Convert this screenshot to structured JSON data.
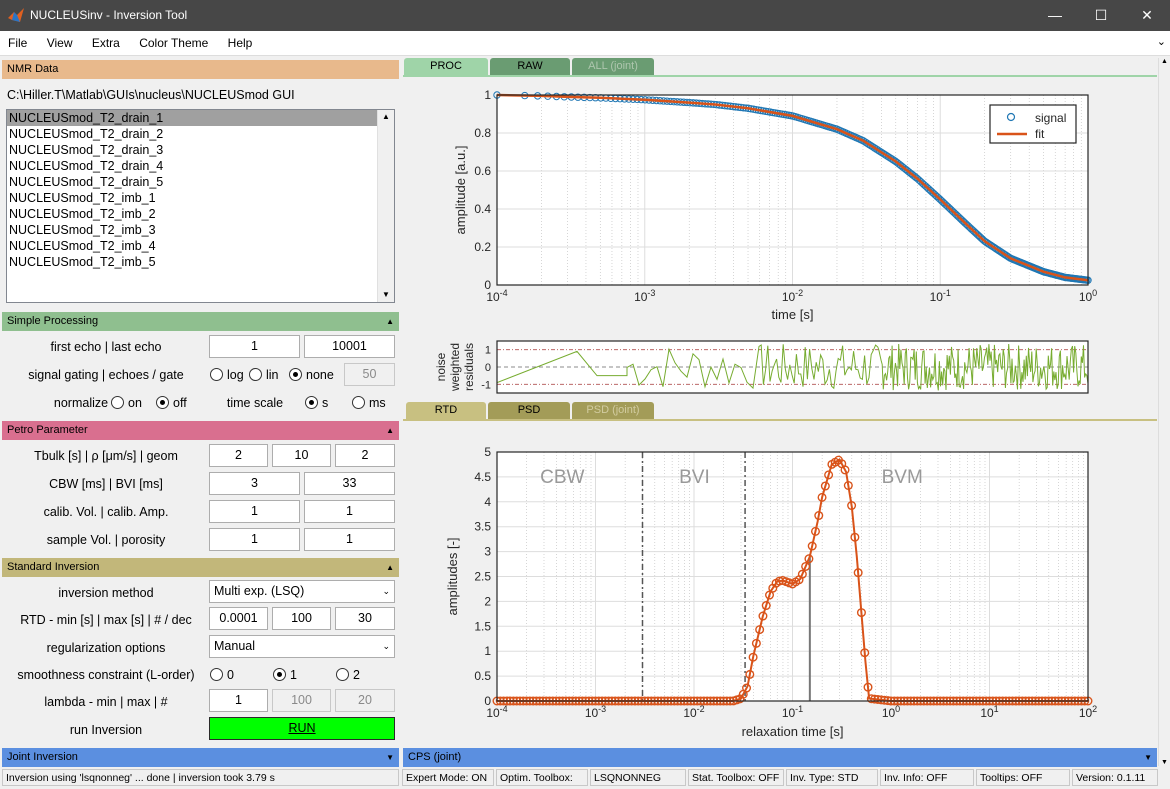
{
  "window": {
    "title": "NUCLEUSinv - Inversion Tool",
    "minimize": "—",
    "maximize": "☐",
    "close": "✕"
  },
  "menu": [
    "File",
    "View",
    "Extra",
    "Color Theme",
    "Help"
  ],
  "nmr": {
    "header": "NMR Data",
    "path": "C:\\Hiller.T\\Matlab\\GUIs\\nucleus\\NUCLEUSmod GUI",
    "files": [
      "NUCLEUSmod_T2_drain_1",
      "NUCLEUSmod_T2_drain_2",
      "NUCLEUSmod_T2_drain_3",
      "NUCLEUSmod_T2_drain_4",
      "NUCLEUSmod_T2_drain_5",
      "NUCLEUSmod_T2_imb_1",
      "NUCLEUSmod_T2_imb_2",
      "NUCLEUSmod_T2_imb_3",
      "NUCLEUSmod_T2_imb_4",
      "NUCLEUSmod_T2_imb_5"
    ]
  },
  "simple": {
    "header": "Simple Processing",
    "caret": "▲",
    "first_last_label": "first echo | last echo",
    "first_echo": "1",
    "last_echo": "10001",
    "gating_label": "signal gating | echoes / gate",
    "gate_log": "log",
    "gate_lin": "lin",
    "gate_none": "none",
    "gate_value": "50",
    "normalize_label": "normalize",
    "norm_on": "on",
    "norm_off": "off",
    "timescale_label": "time scale",
    "ts_s": "s",
    "ts_ms": "ms"
  },
  "petro": {
    "header": "Petro Parameter",
    "caret": "▲",
    "row1_label": "Tbulk [s]   |   ρ [μm/s]   |   geom",
    "tbulk": "2",
    "rho": "10",
    "geom": "2",
    "row2_label": "CBW [ms]     |    BVI [ms]",
    "cbw": "3",
    "bvi": "33",
    "row3_label": "calib. Vol.  |  calib. Amp.",
    "calib_vol": "1",
    "calib_amp": "1",
    "row4_label": "sample Vol.   |   porosity",
    "sample_vol": "1",
    "porosity": "1"
  },
  "inversion": {
    "header": "Standard Inversion",
    "caret": "▲",
    "method_label": "inversion method",
    "method": "Multi exp. (LSQ)",
    "rtd_label": "RTD - min [s] | max [s] | # / dec",
    "rtd_min": "0.0001",
    "rtd_max": "100",
    "rtd_n": "30",
    "reg_label": "regularization options",
    "reg": "Manual",
    "smooth_label": "smoothness constraint (L-order)",
    "s0": "0",
    "s1": "1",
    "s2": "2",
    "lambda_label": "lambda  -  min | max | #",
    "lam_min": "1",
    "lam_max": "100",
    "lam_n": "20",
    "run_label": "run Inversion",
    "run_button": "RUN"
  },
  "joint": {
    "header": "Joint Inversion",
    "caret": "▼"
  },
  "cps": {
    "header": "CPS (joint)",
    "caret": "▼"
  },
  "tabs_top": [
    "PROC",
    "RAW",
    "ALL (joint)"
  ],
  "tabs_bottom": [
    "RTD",
    "PSD",
    "PSD (joint)"
  ],
  "status": {
    "msg": "Inversion using 'lsqnonneg' ... done | inversion took  3.79 s",
    "expert": "Expert Mode: ON",
    "optim": "Optim. Toolbox:",
    "solver": "LSQNONNEG",
    "stat": "Stat. Toolbox: OFF",
    "invtype": "Inv. Type: STD",
    "invinfo": "Inv. Info: OFF",
    "tooltips": "Tooltips: OFF",
    "version": "Version: 0.1.11"
  },
  "colors": {
    "nmr_header": "#e8b98c",
    "simple_header": "#8fbf8f",
    "petro_header": "#d96f8f",
    "inversion_header": "#c2b77a",
    "joint_header": "#5b8fe0",
    "run_button": "#00ff00",
    "signal": "#1f77b4",
    "fit": "#d95319"
  },
  "chart_data": [
    {
      "type": "line",
      "name": "signal-fit",
      "xlabel": "time [s]",
      "ylabel": "amplitude [a.u.]",
      "xscale": "log",
      "xlim": [
        0.0001,
        1
      ],
      "ylim": [
        0,
        1
      ],
      "xticks": [
        "10^-4",
        "10^-3",
        "10^-2",
        "10^-1"
      ],
      "yticks": [
        "0",
        "0.2",
        "0.4",
        "0.6",
        "0.8",
        "1"
      ],
      "legend": {
        "position": "top-right",
        "entries": [
          "signal",
          "fit"
        ]
      },
      "grid": true,
      "series": [
        {
          "name": "signal",
          "x": [
            0.0001,
            0.0002,
            0.0003,
            0.0005,
            0.001,
            0.002,
            0.003,
            0.005,
            0.01,
            0.02,
            0.03,
            0.05,
            0.07,
            0.1,
            0.15,
            0.2,
            0.3,
            0.5,
            0.7,
            1
          ],
          "y": [
            1,
            0.995,
            0.99,
            0.985,
            0.975,
            0.96,
            0.95,
            0.93,
            0.89,
            0.82,
            0.76,
            0.65,
            0.56,
            0.45,
            0.32,
            0.23,
            0.14,
            0.07,
            0.04,
            0.025
          ]
        },
        {
          "name": "fit",
          "x": [
            0.0001,
            0.0002,
            0.0003,
            0.0005,
            0.001,
            0.002,
            0.003,
            0.005,
            0.01,
            0.02,
            0.03,
            0.05,
            0.07,
            0.1,
            0.15,
            0.2,
            0.3,
            0.5,
            0.7,
            1
          ],
          "y": [
            1,
            0.995,
            0.99,
            0.985,
            0.975,
            0.96,
            0.95,
            0.93,
            0.89,
            0.82,
            0.76,
            0.65,
            0.56,
            0.45,
            0.32,
            0.23,
            0.14,
            0.07,
            0.04,
            0.025
          ]
        }
      ]
    },
    {
      "type": "line",
      "name": "residuals",
      "ylabel": "noise weighted residuals",
      "yticks": [
        "-1",
        "0",
        "1"
      ],
      "ylim": [
        -1.5,
        1.5
      ],
      "xscale": "log",
      "xlim": [
        0.0001,
        1
      ]
    },
    {
      "type": "line",
      "name": "rtd",
      "xlabel": "relaxation time [s]",
      "ylabel": "amplitudes [-]",
      "xscale": "log",
      "xlim": [
        0.0001,
        100
      ],
      "ylim": [
        0,
        5
      ],
      "xticks": [
        "10^-4",
        "10^-3",
        "10^-2",
        "10^-1",
        "10^0",
        "10^1",
        "10^2"
      ],
      "yticks": [
        "0",
        "0.5",
        "1",
        "1.5",
        "2",
        "2.5",
        "3",
        "3.5",
        "4",
        "4.5",
        "5"
      ],
      "annotations": [
        "CBW",
        "BVI",
        "BVM"
      ],
      "cutoffs": [
        0.003,
        0.033
      ],
      "grid": true,
      "series": [
        {
          "name": "rtd",
          "x": [
            0.0001,
            0.001,
            0.01,
            0.025,
            0.03,
            0.035,
            0.04,
            0.05,
            0.06,
            0.07,
            0.08,
            0.1,
            0.12,
            0.15,
            0.18,
            0.2,
            0.25,
            0.3,
            0.35,
            0.4,
            0.45,
            0.5,
            0.55,
            0.6,
            1,
            10,
            100
          ],
          "y": [
            0,
            0,
            0,
            0,
            0.05,
            0.3,
            0.9,
            1.7,
            2.2,
            2.4,
            2.42,
            2.35,
            2.45,
            2.9,
            3.6,
            4.1,
            4.75,
            4.85,
            4.6,
            3.9,
            2.9,
            1.8,
            0.8,
            0.05,
            0,
            0,
            0
          ]
        }
      ]
    }
  ]
}
